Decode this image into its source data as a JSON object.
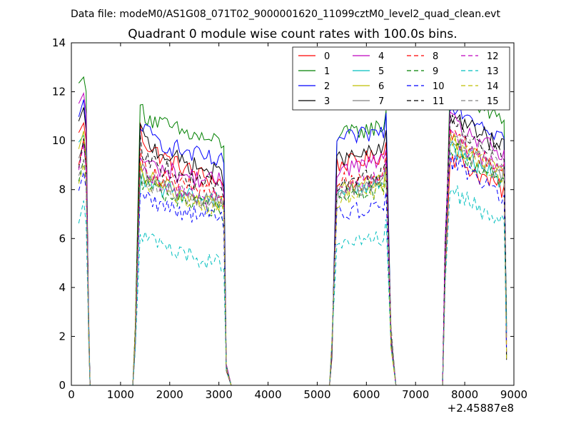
{
  "figure": {
    "suptitle": "Data file: modeM0/AS1G08_071T02_9000001620_11099cztM0_level2_quad_clean.evt"
  },
  "chart_data": {
    "type": "line",
    "title": "Quadrant 0 module wise count rates with 100.0s bins.",
    "xlabel": "",
    "ylabel": "",
    "x_offset_label": "+2.45887e8",
    "xlim": [
      0,
      9000
    ],
    "ylim": [
      0,
      14
    ],
    "x_ticks": [
      0,
      1000,
      2000,
      3000,
      4000,
      5000,
      6000,
      7000,
      8000,
      9000
    ],
    "y_ticks": [
      0,
      2,
      4,
      6,
      8,
      10,
      12,
      14
    ],
    "grid": false,
    "legend_position": "top-right",
    "legend_columns": 4,
    "segments": [
      {
        "x_start": 150,
        "x_end": 350
      },
      {
        "x_start": 1250,
        "x_end": 3150
      },
      {
        "x_start": 5250,
        "x_end": 6450
      },
      {
        "x_start": 7550,
        "x_end": 8850
      }
    ],
    "series": [
      {
        "name": "0",
        "color": "#ff0000",
        "dash": false,
        "levels": [
          10.2,
          10.5,
          8.3,
          9.0,
          8.2
        ]
      },
      {
        "name": "1",
        "color": "#008000",
        "dash": false,
        "levels": [
          12.2,
          11.5,
          9.9,
          10.2,
          11.0
        ]
      },
      {
        "name": "2",
        "color": "#0000ff",
        "dash": false,
        "levels": [
          10.8,
          10.8,
          9.1,
          10.0,
          10.4
        ]
      },
      {
        "name": "3",
        "color": "#000000",
        "dash": false,
        "levels": [
          10.6,
          10.5,
          8.6,
          9.2,
          9.9
        ]
      },
      {
        "name": "4",
        "color": "#bf00bf",
        "dash": false,
        "levels": [
          11.3,
          9.4,
          8.3,
          8.8,
          9.6
        ]
      },
      {
        "name": "5",
        "color": "#00bfbf",
        "dash": false,
        "levels": [
          9.7,
          8.5,
          7.6,
          7.9,
          8.6
        ]
      },
      {
        "name": "6",
        "color": "#bfbf00",
        "dash": false,
        "levels": [
          9.4,
          9.0,
          7.4,
          8.0,
          8.8
        ]
      },
      {
        "name": "7",
        "color": "#808080",
        "dash": false,
        "levels": [
          9.0,
          8.9,
          7.5,
          7.9,
          8.8
        ]
      },
      {
        "name": "8",
        "color": "#ff0000",
        "dash": true,
        "levels": [
          9.3,
          9.3,
          7.8,
          8.3,
          9.0
        ]
      },
      {
        "name": "9",
        "color": "#008000",
        "dash": true,
        "levels": [
          8.6,
          8.6,
          7.2,
          7.6,
          8.5
        ]
      },
      {
        "name": "10",
        "color": "#0000ff",
        "dash": true,
        "levels": [
          8.2,
          8.0,
          6.8,
          7.0,
          8.0
        ]
      },
      {
        "name": "11",
        "color": "#000000",
        "dash": true,
        "levels": [
          9.1,
          9.9,
          8.0,
          8.2,
          9.6
        ]
      },
      {
        "name": "12",
        "color": "#bf00bf",
        "dash": true,
        "levels": [
          9.0,
          8.9,
          7.6,
          8.1,
          9.0
        ]
      },
      {
        "name": "13",
        "color": "#00bfbf",
        "dash": true,
        "levels": [
          6.8,
          6.4,
          5.0,
          5.6,
          6.8
        ]
      },
      {
        "name": "14",
        "color": "#bfbf00",
        "dash": true,
        "levels": [
          8.4,
          8.7,
          7.2,
          7.6,
          8.7
        ]
      },
      {
        "name": "15",
        "color": "#808080",
        "dash": true,
        "levels": [
          8.7,
          8.7,
          7.4,
          7.9,
          9.2
        ]
      }
    ]
  }
}
